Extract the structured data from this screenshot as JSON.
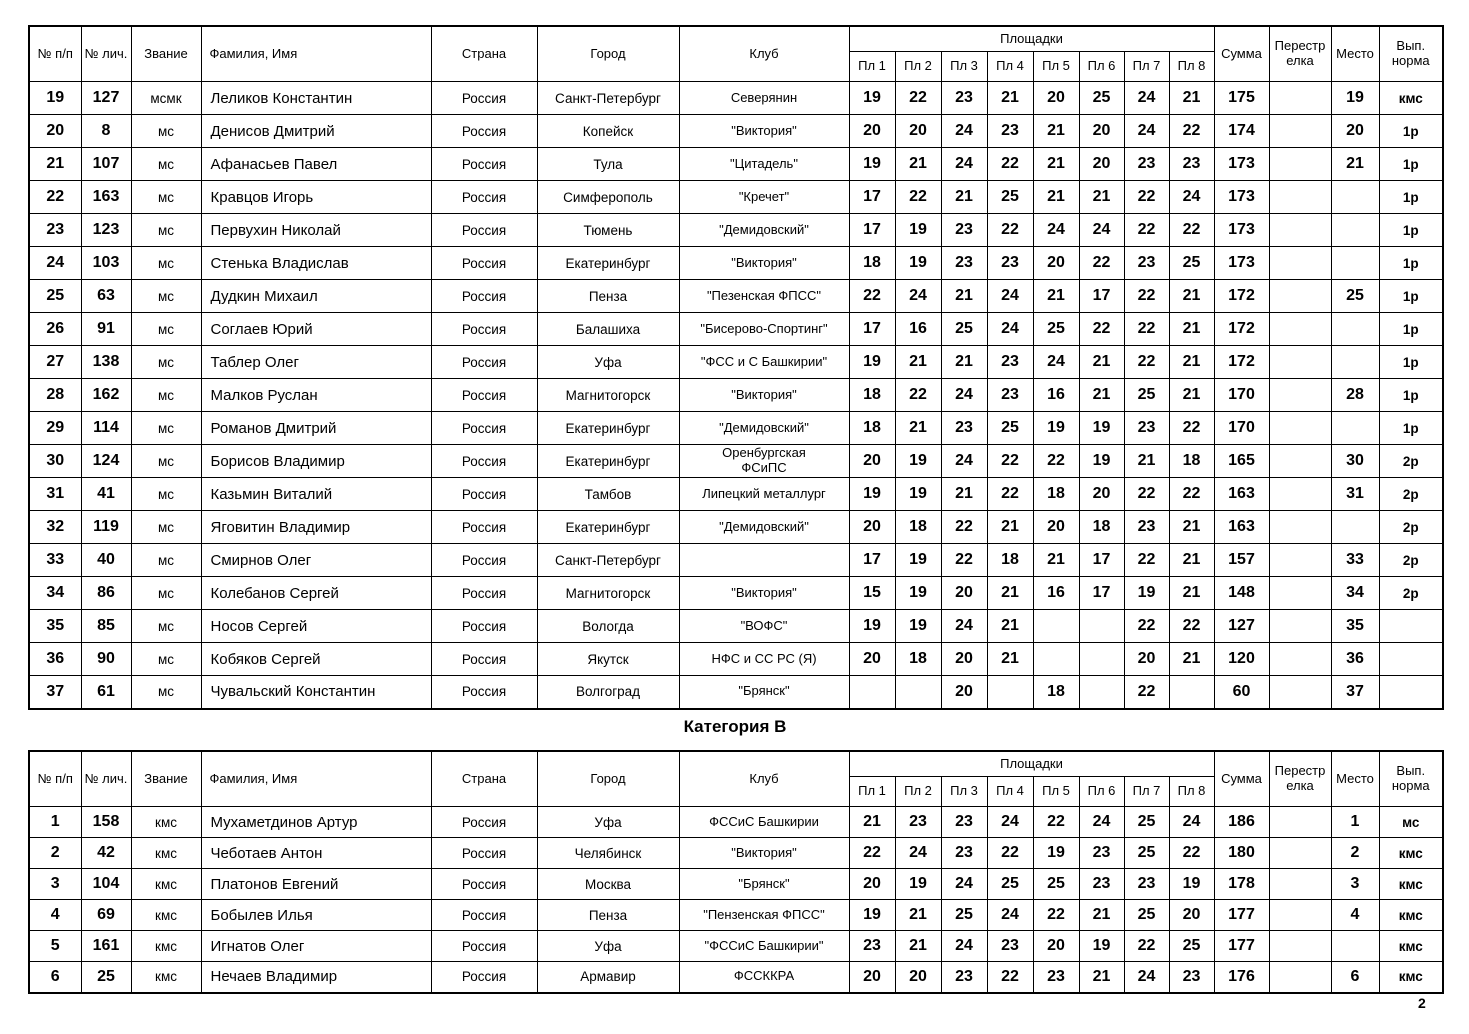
{
  "page_number": "2",
  "section_title": "Категория В",
  "headers": {
    "pp": "№ п/п",
    "id": "№ лич.",
    "rank": "Звание",
    "name": "Фамилия, Имя",
    "country": "Страна",
    "city": "Город",
    "club": "Клуб",
    "stations_group": "Площадки",
    "stations": [
      "Пл 1",
      "Пл 2",
      "Пл 3",
      "Пл 4",
      "Пл 5",
      "Пл 6",
      "Пл 7",
      "Пл 8"
    ],
    "sum": "Сумма",
    "shootoff": "Перестрелка",
    "place": "Место",
    "norm": "Вып. норма"
  },
  "tables": [
    {
      "rows": [
        {
          "pp": "19",
          "id": "127",
          "rank": "мсмк",
          "name": "Леликов Константин",
          "country": "Россия",
          "city": "Санкт-Петербург",
          "club": "Северянин",
          "scores": [
            "19",
            "22",
            "23",
            "21",
            "20",
            "25",
            "24",
            "21"
          ],
          "sum": "175",
          "shootoff": "",
          "place": "19",
          "norm": "кмс"
        },
        {
          "pp": "20",
          "id": "8",
          "rank": "мс",
          "name": "Денисов Дмитрий",
          "country": "Россия",
          "city": "Копейск",
          "club": "\"Виктория\"",
          "scores": [
            "20",
            "20",
            "24",
            "23",
            "21",
            "20",
            "24",
            "22"
          ],
          "sum": "174",
          "shootoff": "",
          "place": "20",
          "norm": "1р"
        },
        {
          "pp": "21",
          "id": "107",
          "rank": "мс",
          "name": "Афанасьев Павел",
          "country": "Россия",
          "city": "Тула",
          "club": "\"Цитадель\"",
          "scores": [
            "19",
            "21",
            "24",
            "22",
            "21",
            "20",
            "23",
            "23"
          ],
          "sum": "173",
          "shootoff": "",
          "place": "21",
          "norm": "1р"
        },
        {
          "pp": "22",
          "id": "163",
          "rank": "мс",
          "name": "Кравцов Игорь",
          "country": "Россия",
          "city": "Симферополь",
          "club": "\"Кречет\"",
          "scores": [
            "17",
            "22",
            "21",
            "25",
            "21",
            "21",
            "22",
            "24"
          ],
          "sum": "173",
          "shootoff": "",
          "place": "",
          "norm": "1р"
        },
        {
          "pp": "23",
          "id": "123",
          "rank": "мс",
          "name": "Первухин Николай",
          "country": "Россия",
          "city": "Тюмень",
          "club": "\"Демидовский\"",
          "scores": [
            "17",
            "19",
            "23",
            "22",
            "24",
            "24",
            "22",
            "22"
          ],
          "sum": "173",
          "shootoff": "",
          "place": "",
          "norm": "1р"
        },
        {
          "pp": "24",
          "id": "103",
          "rank": "мс",
          "name": "Стенька Владислав",
          "country": "Россия",
          "city": "Екатеринбург",
          "club": "\"Виктория\"",
          "scores": [
            "18",
            "19",
            "23",
            "23",
            "20",
            "22",
            "23",
            "25"
          ],
          "sum": "173",
          "shootoff": "",
          "place": "",
          "norm": "1р"
        },
        {
          "pp": "25",
          "id": "63",
          "rank": "мс",
          "name": "Дудкин Михаил",
          "country": "Россия",
          "city": "Пенза",
          "club": "\"Пезенская ФПСС\"",
          "scores": [
            "22",
            "24",
            "21",
            "24",
            "21",
            "17",
            "22",
            "21"
          ],
          "sum": "172",
          "shootoff": "",
          "place": "25",
          "norm": "1р"
        },
        {
          "pp": "26",
          "id": "91",
          "rank": "мс",
          "name": "Соглаев Юрий",
          "country": "Россия",
          "city": "Балашиха",
          "club": "\"Бисерово-Спортинг\"",
          "scores": [
            "17",
            "16",
            "25",
            "24",
            "25",
            "22",
            "22",
            "21"
          ],
          "sum": "172",
          "shootoff": "",
          "place": "",
          "norm": "1р"
        },
        {
          "pp": "27",
          "id": "138",
          "rank": "мс",
          "name": "Таблер Олег",
          "country": "Россия",
          "city": "Уфа",
          "club": "\"ФСС и С Башкирии\"",
          "scores": [
            "19",
            "21",
            "21",
            "23",
            "24",
            "21",
            "22",
            "21"
          ],
          "sum": "172",
          "shootoff": "",
          "place": "",
          "norm": "1р"
        },
        {
          "pp": "28",
          "id": "162",
          "rank": "мс",
          "name": "Малков Руслан",
          "country": "Россия",
          "city": "Магнитогорск",
          "club": "\"Виктория\"",
          "scores": [
            "18",
            "22",
            "24",
            "23",
            "16",
            "21",
            "25",
            "21"
          ],
          "sum": "170",
          "shootoff": "",
          "place": "28",
          "norm": "1р"
        },
        {
          "pp": "29",
          "id": "114",
          "rank": "мс",
          "name": "Романов Дмитрий",
          "country": "Россия",
          "city": "Екатеринбург",
          "club": "\"Демидовский\"",
          "scores": [
            "18",
            "21",
            "23",
            "25",
            "19",
            "19",
            "23",
            "22"
          ],
          "sum": "170",
          "shootoff": "",
          "place": "",
          "norm": "1р"
        },
        {
          "pp": "30",
          "id": "124",
          "rank": "мс",
          "name": "Борисов Владимир",
          "country": "Россия",
          "city": "Екатеринбург",
          "club": "Оренбургская\nФСиПС",
          "scores": [
            "20",
            "19",
            "24",
            "22",
            "22",
            "19",
            "21",
            "18"
          ],
          "sum": "165",
          "shootoff": "",
          "place": "30",
          "norm": "2р"
        },
        {
          "pp": "31",
          "id": "41",
          "rank": "мс",
          "name": "Казьмин Виталий",
          "country": "Россия",
          "city": "Тамбов",
          "club": "Липецкий металлург",
          "scores": [
            "19",
            "19",
            "21",
            "22",
            "18",
            "20",
            "22",
            "22"
          ],
          "sum": "163",
          "shootoff": "",
          "place": "31",
          "norm": "2р"
        },
        {
          "pp": "32",
          "id": "119",
          "rank": "мс",
          "name": "Яговитин Владимир",
          "country": "Россия",
          "city": "Екатеринбург",
          "club": "\"Демидовский\"",
          "scores": [
            "20",
            "18",
            "22",
            "21",
            "20",
            "18",
            "23",
            "21"
          ],
          "sum": "163",
          "shootoff": "",
          "place": "",
          "norm": "2р"
        },
        {
          "pp": "33",
          "id": "40",
          "rank": "мс",
          "name": "Смирнов Олег",
          "country": "Россия",
          "city": "Санкт-Петербург",
          "club": "",
          "scores": [
            "17",
            "19",
            "22",
            "18",
            "21",
            "17",
            "22",
            "21"
          ],
          "sum": "157",
          "shootoff": "",
          "place": "33",
          "norm": "2р"
        },
        {
          "pp": "34",
          "id": "86",
          "rank": "мс",
          "name": "Колебанов Сергей",
          "country": "Россия",
          "city": "Магнитогорск",
          "club": "\"Виктория\"",
          "scores": [
            "15",
            "19",
            "20",
            "21",
            "16",
            "17",
            "19",
            "21"
          ],
          "sum": "148",
          "shootoff": "",
          "place": "34",
          "norm": "2р"
        },
        {
          "pp": "35",
          "id": "85",
          "rank": "мс",
          "name": "Носов Сергей",
          "country": "Россия",
          "city": "Вологда",
          "club": "\"ВОФС\"",
          "scores": [
            "19",
            "19",
            "24",
            "21",
            "",
            "",
            "22",
            "22"
          ],
          "sum": "127",
          "shootoff": "",
          "place": "35",
          "norm": ""
        },
        {
          "pp": "36",
          "id": "90",
          "rank": "мс",
          "name": "Кобяков Сергей",
          "country": "Россия",
          "city": "Якутск",
          "club": "НФС и СС РС (Я)",
          "scores": [
            "20",
            "18",
            "20",
            "21",
            "",
            "",
            "20",
            "21"
          ],
          "sum": "120",
          "shootoff": "",
          "place": "36",
          "norm": ""
        },
        {
          "pp": "37",
          "id": "61",
          "rank": "мс",
          "name": "Чувальский Константин",
          "country": "Россия",
          "city": "Волгоград",
          "club": "\"Брянск\"",
          "scores": [
            "",
            "",
            "20",
            "",
            "18",
            "",
            "22",
            ""
          ],
          "sum": "60",
          "shootoff": "",
          "place": "37",
          "norm": ""
        }
      ]
    },
    {
      "rows": [
        {
          "pp": "1",
          "id": "158",
          "rank": "кмс",
          "name": "Мухаметдинов Артур",
          "country": "Россия",
          "city": "Уфа",
          "club": "ФССиС Башкирии",
          "scores": [
            "21",
            "23",
            "23",
            "24",
            "22",
            "24",
            "25",
            "24"
          ],
          "sum": "186",
          "shootoff": "",
          "place": "1",
          "norm": "мс"
        },
        {
          "pp": "2",
          "id": "42",
          "rank": "кмс",
          "name": "Чеботаев Антон",
          "country": "Россия",
          "city": "Челябинск",
          "club": "\"Виктория\"",
          "scores": [
            "22",
            "24",
            "23",
            "22",
            "19",
            "23",
            "25",
            "22"
          ],
          "sum": "180",
          "shootoff": "",
          "place": "2",
          "norm": "кмс"
        },
        {
          "pp": "3",
          "id": "104",
          "rank": "кмс",
          "name": "Платонов Евгений",
          "country": "Россия",
          "city": "Москва",
          "club": "\"Брянск\"",
          "scores": [
            "20",
            "19",
            "24",
            "25",
            "25",
            "23",
            "23",
            "19"
          ],
          "sum": "178",
          "shootoff": "",
          "place": "3",
          "norm": "кмс"
        },
        {
          "pp": "4",
          "id": "69",
          "rank": "кмс",
          "name": "Бобылев Илья",
          "country": "Россия",
          "city": "Пенза",
          "club": "\"Пензенская ФПСС\"",
          "scores": [
            "19",
            "21",
            "25",
            "24",
            "22",
            "21",
            "25",
            "20"
          ],
          "sum": "177",
          "shootoff": "",
          "place": "4",
          "norm": "кмс"
        },
        {
          "pp": "5",
          "id": "161",
          "rank": "кмс",
          "name": "Игнатов Олег",
          "country": "Россия",
          "city": "Уфа",
          "club": "\"ФССиС Башкирии\"",
          "scores": [
            "23",
            "21",
            "24",
            "23",
            "20",
            "19",
            "22",
            "25"
          ],
          "sum": "177",
          "shootoff": "",
          "place": "",
          "norm": "кмс"
        },
        {
          "pp": "6",
          "id": "25",
          "rank": "кмс",
          "name": "Нечаев Владимир",
          "country": "Россия",
          "city": "Армавир",
          "club": "ФССККРА",
          "scores": [
            "20",
            "20",
            "23",
            "22",
            "23",
            "21",
            "24",
            "23"
          ],
          "sum": "176",
          "shootoff": "",
          "place": "6",
          "norm": "кмс"
        }
      ]
    }
  ]
}
